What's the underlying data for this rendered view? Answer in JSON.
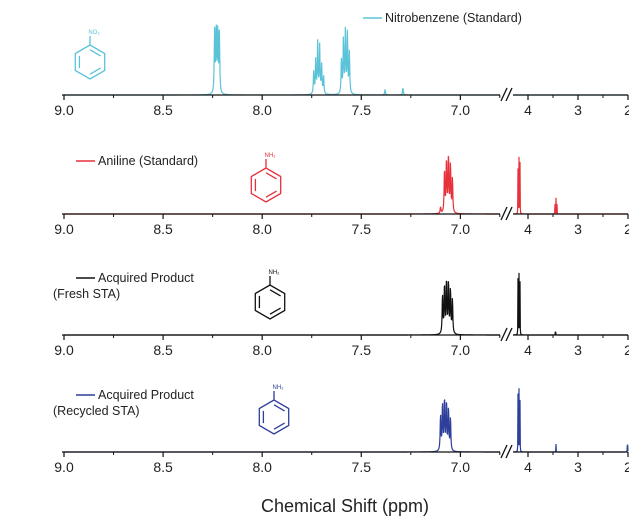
{
  "chart_data": {
    "type": "line",
    "xlabel": "Chemical Shift (ppm)",
    "x_axis": {
      "reversed": true,
      "broken": true,
      "segment_left": [
        9.0,
        6.8
      ],
      "segment_right": [
        4.3,
        2.0
      ],
      "ticks": [
        {
          "value": 9.0,
          "label": "9.0"
        },
        {
          "value": 8.5,
          "label": "8.5"
        },
        {
          "value": 8.0,
          "label": "8.0"
        },
        {
          "value": 7.5,
          "label": "7.5"
        },
        {
          "value": 7.0,
          "label": "7.0"
        },
        {
          "value": 4.0,
          "label": "4"
        },
        {
          "value": 3.0,
          "label": "3"
        },
        {
          "value": 2.0,
          "label": "2"
        }
      ]
    },
    "panels": [
      {
        "legend": [
          "Nitrobenzene (Standard)"
        ],
        "color": "#5bc3d8",
        "molecule_group": "NO₂",
        "peaks": [
          {
            "x": 8.24,
            "h": 0.78
          },
          {
            "x": 8.232,
            "h": 0.82
          },
          {
            "x": 8.224,
            "h": 0.8
          },
          {
            "x": 8.216,
            "h": 0.74
          },
          {
            "x": 7.74,
            "h": 0.28
          },
          {
            "x": 7.73,
            "h": 0.42
          },
          {
            "x": 7.72,
            "h": 0.64
          },
          {
            "x": 7.71,
            "h": 0.6
          },
          {
            "x": 7.7,
            "h": 0.36
          },
          {
            "x": 7.69,
            "h": 0.22
          },
          {
            "x": 7.6,
            "h": 0.45
          },
          {
            "x": 7.59,
            "h": 0.7
          },
          {
            "x": 7.58,
            "h": 0.8
          },
          {
            "x": 7.57,
            "h": 0.76
          },
          {
            "x": 7.56,
            "h": 0.52
          },
          {
            "x": 7.38,
            "h": 0.07
          },
          {
            "x": 7.29,
            "h": 0.09
          }
        ]
      },
      {
        "legend": [
          "Aniline (Standard)"
        ],
        "color": "#e8303a",
        "molecule_group": "NH₂",
        "peaks": [
          {
            "x": 7.1,
            "h": 0.08
          },
          {
            "x": 7.08,
            "h": 0.55
          },
          {
            "x": 7.07,
            "h": 0.68
          },
          {
            "x": 7.06,
            "h": 0.72
          },
          {
            "x": 7.05,
            "h": 0.62
          },
          {
            "x": 7.04,
            "h": 0.44
          },
          {
            "x": 4.43,
            "h": 0.22
          },
          {
            "x": 4.41,
            "h": 0.4
          },
          {
            "x": 4.39,
            "h": 0.46
          },
          {
            "x": 4.37,
            "h": 0.3
          },
          {
            "x": 4.2,
            "h": 0.56
          },
          {
            "x": 4.18,
            "h": 0.7
          },
          {
            "x": 4.16,
            "h": 0.64
          },
          {
            "x": 3.46,
            "h": 0.12
          },
          {
            "x": 3.44,
            "h": 0.2
          },
          {
            "x": 3.42,
            "h": 0.12
          }
        ]
      },
      {
        "legend": [
          "Acquired Product",
          "(Fresh STA)"
        ],
        "color": "#111111",
        "molecule_group": "NH₂",
        "peaks": [
          {
            "x": 7.09,
            "h": 0.5
          },
          {
            "x": 7.08,
            "h": 0.62
          },
          {
            "x": 7.07,
            "h": 0.68
          },
          {
            "x": 7.06,
            "h": 0.66
          },
          {
            "x": 7.05,
            "h": 0.56
          },
          {
            "x": 7.04,
            "h": 0.44
          },
          {
            "x": 4.45,
            "h": 0.26
          },
          {
            "x": 4.43,
            "h": 0.34
          },
          {
            "x": 4.41,
            "h": 0.52
          },
          {
            "x": 4.39,
            "h": 0.26
          },
          {
            "x": 4.2,
            "h": 0.7
          },
          {
            "x": 4.18,
            "h": 0.76
          },
          {
            "x": 4.16,
            "h": 0.66
          },
          {
            "x": 3.45,
            "h": 0.12
          }
        ]
      },
      {
        "legend": [
          "Acquired Product",
          "(Recycled STA)"
        ],
        "color": "#2e3f9a",
        "molecule_group": "NH₂",
        "peaks": [
          {
            "x": 7.1,
            "h": 0.45
          },
          {
            "x": 7.09,
            "h": 0.6
          },
          {
            "x": 7.08,
            "h": 0.66
          },
          {
            "x": 7.07,
            "h": 0.62
          },
          {
            "x": 7.06,
            "h": 0.54
          },
          {
            "x": 7.05,
            "h": 0.42
          },
          {
            "x": 4.45,
            "h": 0.26
          },
          {
            "x": 4.43,
            "h": 0.48
          },
          {
            "x": 4.41,
            "h": 0.36
          },
          {
            "x": 4.39,
            "h": 0.2
          },
          {
            "x": 4.2,
            "h": 0.72
          },
          {
            "x": 4.18,
            "h": 0.78
          },
          {
            "x": 4.16,
            "h": 0.64
          },
          {
            "x": 3.44,
            "h": 0.1
          },
          {
            "x": 2.01,
            "h": 0.28
          }
        ]
      }
    ]
  }
}
